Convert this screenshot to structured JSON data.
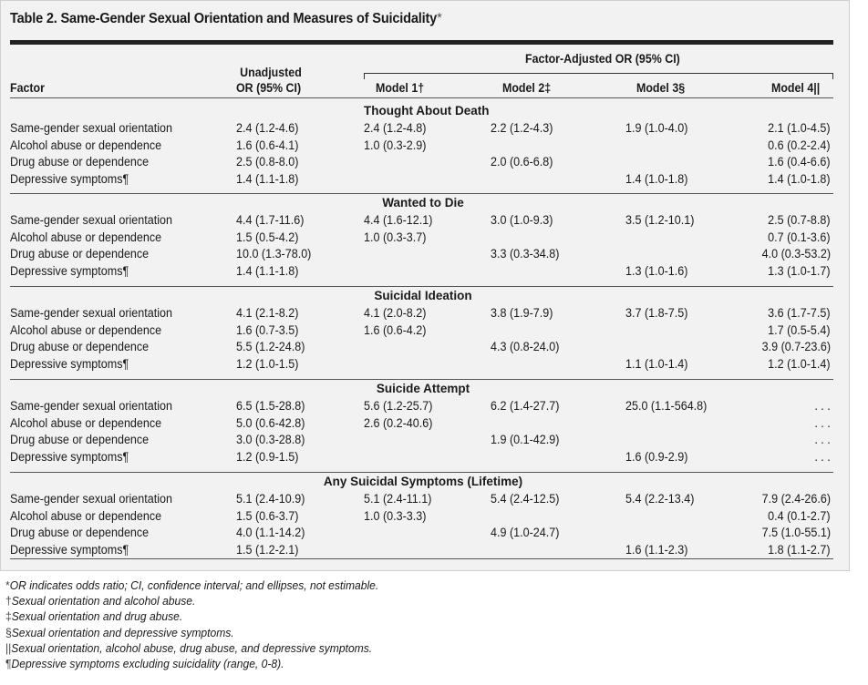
{
  "table": {
    "title": "Table 2. Same-Gender Sexual Orientation and Measures of Suicidality",
    "title_mark": "*",
    "headers": {
      "factor": "Factor",
      "unadjusted_line1": "Unadjusted",
      "unadjusted_line2": "OR (95% CI)",
      "adjusted_group": "Factor-Adjusted OR (95% CI)",
      "model1": "Model 1†",
      "model2": "Model 2‡",
      "model3": "Model 3§",
      "model4": "Model 4||"
    },
    "sections": [
      {
        "title": "Thought About Death",
        "rows": [
          {
            "factor": "Same-gender sexual orientation",
            "unadj": "2.4 (1.2-4.6)",
            "m1": "2.4 (1.2-4.8)",
            "m2": "2.2 (1.2-4.3)",
            "m3": "1.9 (1.0-4.0)",
            "m4": "2.1 (1.0-4.5)"
          },
          {
            "factor": "Alcohol abuse or dependence",
            "unadj": "1.6 (0.6-4.1)",
            "m1": "1.0 (0.3-2.9)",
            "m2": "",
            "m3": "",
            "m4": "0.6 (0.2-2.4)"
          },
          {
            "factor": "Drug abuse or dependence",
            "unadj": "2.5 (0.8-8.0)",
            "m1": "",
            "m2": "2.0 (0.6-6.8)",
            "m3": "",
            "m4": "1.6 (0.4-6.6)"
          },
          {
            "factor": "Depressive symptoms¶",
            "unadj": "1.4 (1.1-1.8)",
            "m1": "",
            "m2": "",
            "m3": "1.4 (1.0-1.8)",
            "m4": "1.4 (1.0-1.8)"
          }
        ]
      },
      {
        "title": "Wanted to Die",
        "rows": [
          {
            "factor": "Same-gender sexual orientation",
            "unadj": "4.4 (1.7-11.6)",
            "m1": "4.4 (1.6-12.1)",
            "m2": "3.0 (1.0-9.3)",
            "m3": "3.5 (1.2-10.1)",
            "m4": "2.5 (0.7-8.8)"
          },
          {
            "factor": "Alcohol abuse or dependence",
            "unadj": "1.5 (0.5-4.2)",
            "m1": "1.0 (0.3-3.7)",
            "m2": "",
            "m3": "",
            "m4": "0.7 (0.1-3.6)"
          },
          {
            "factor": "Drug abuse or dependence",
            "unadj": "10.0 (1.3-78.0)",
            "m1": "",
            "m2": "3.3 (0.3-34.8)",
            "m3": "",
            "m4": "4.0 (0.3-53.2)"
          },
          {
            "factor": "Depressive symptoms¶",
            "unadj": "1.4 (1.1-1.8)",
            "m1": "",
            "m2": "",
            "m3": "1.3 (1.0-1.6)",
            "m4": "1.3 (1.0-1.7)"
          }
        ]
      },
      {
        "title": "Suicidal Ideation",
        "rows": [
          {
            "factor": "Same-gender sexual orientation",
            "unadj": "4.1 (2.1-8.2)",
            "m1": "4.1 (2.0-8.2)",
            "m2": "3.8 (1.9-7.9)",
            "m3": "3.7 (1.8-7.5)",
            "m4": "3.6 (1.7-7.5)"
          },
          {
            "factor": "Alcohol abuse or dependence",
            "unadj": "1.6 (0.7-3.5)",
            "m1": "1.6 (0.6-4.2)",
            "m2": "",
            "m3": "",
            "m4": "1.7 (0.5-5.4)"
          },
          {
            "factor": "Drug abuse or dependence",
            "unadj": "5.5 (1.2-24.8)",
            "m1": "",
            "m2": "4.3 (0.8-24.0)",
            "m3": "",
            "m4": "3.9 (0.7-23.6)"
          },
          {
            "factor": "Depressive symptoms¶",
            "unadj": "1.2 (1.0-1.5)",
            "m1": "",
            "m2": "",
            "m3": "1.1 (1.0-1.4)",
            "m4": "1.2 (1.0-1.4)"
          }
        ]
      },
      {
        "title": "Suicide Attempt",
        "rows": [
          {
            "factor": "Same-gender sexual orientation",
            "unadj": "6.5 (1.5-28.8)",
            "m1": "5.6 (1.2-25.7)",
            "m2": "6.2 (1.4-27.7)",
            "m3": "25.0 (1.1-564.8)",
            "m4": ". . ."
          },
          {
            "factor": "Alcohol abuse or dependence",
            "unadj": "5.0 (0.6-42.8)",
            "m1": "2.6 (0.2-40.6)",
            "m2": "",
            "m3": "",
            "m4": ". . ."
          },
          {
            "factor": "Drug abuse or dependence",
            "unadj": "3.0 (0.3-28.8)",
            "m1": "",
            "m2": "1.9 (0.1-42.9)",
            "m3": "",
            "m4": ". . ."
          },
          {
            "factor": "Depressive symptoms¶",
            "unadj": "1.2 (0.9-1.5)",
            "m1": "",
            "m2": "",
            "m3": "1.6 (0.9-2.9)",
            "m4": ". . ."
          }
        ]
      },
      {
        "title": "Any Suicidal Symptoms (Lifetime)",
        "rows": [
          {
            "factor": "Same-gender sexual orientation",
            "unadj": "5.1 (2.4-10.9)",
            "m1": "5.1 (2.4-11.1)",
            "m2": "5.4 (2.4-12.5)",
            "m3": "5.4 (2.2-13.4)",
            "m4": "7.9 (2.4-26.6)"
          },
          {
            "factor": "Alcohol abuse or dependence",
            "unadj": "1.5 (0.6-3.7)",
            "m1": "1.0 (0.3-3.3)",
            "m2": "",
            "m3": "",
            "m4": "0.4 (0.1-2.7)"
          },
          {
            "factor": "Drug abuse or dependence",
            "unadj": "4.0 (1.1-14.2)",
            "m1": "",
            "m2": "4.9 (1.0-24.7)",
            "m3": "",
            "m4": "7.5 (1.0-55.1)"
          },
          {
            "factor": "Depressive symptoms¶",
            "unadj": "1.5 (1.2-2.1)",
            "m1": "",
            "m2": "",
            "m3": "1.6 (1.1-2.3)",
            "m4": "1.8 (1.1-2.7)"
          }
        ]
      }
    ],
    "footnotes": [
      {
        "sym": "*",
        "text": "OR indicates odds ratio; CI, confidence interval; and ellipses, not estimable."
      },
      {
        "sym": "†",
        "text": "Sexual orientation and alcohol abuse."
      },
      {
        "sym": "‡",
        "text": "Sexual orientation and drug abuse."
      },
      {
        "sym": "§",
        "text": "Sexual orientation and depressive symptoms."
      },
      {
        "sym": "||",
        "text": "Sexual orientation, alcohol abuse, drug abuse, and depressive symptoms."
      },
      {
        "sym": "¶",
        "text": "Depressive symptoms excluding suicidality (range, 0-8)."
      }
    ]
  }
}
